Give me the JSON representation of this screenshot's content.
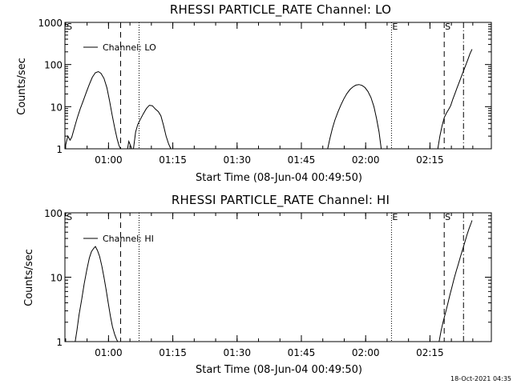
{
  "chart_data": [
    {
      "type": "line",
      "title": "RHESSI PARTICLE_RATE Channel: LO",
      "xlabel": "Start Time (08-Jun-04 00:49:50)",
      "ylabel": "Counts/sec",
      "yscale": "log",
      "ylim": [
        1,
        1000
      ],
      "yticks": [
        1,
        10,
        100,
        1000
      ],
      "ytick_labels": [
        "1",
        "10",
        "100",
        "1000"
      ],
      "xlim_min": [
        0,
        99.5
      ],
      "xticks_min": [
        10.17,
        25.17,
        40.17,
        55.17,
        70.17,
        85.17
      ],
      "xtick_labels": [
        "01:00",
        "01:15",
        "01:30",
        "01:45",
        "02:00",
        "02:15"
      ],
      "grid": false,
      "legend": {
        "label": "Channel: LO",
        "placement": "top-left"
      },
      "markers": [
        {
          "label": "S",
          "x_min": 0.2,
          "style": "none"
        },
        {
          "label": "",
          "x_min": 13.0,
          "style": "dashed"
        },
        {
          "label": "",
          "x_min": 17.3,
          "style": "dotted"
        },
        {
          "label": "E",
          "x_min": 76.2,
          "style": "dotted"
        },
        {
          "label": "S",
          "x_min": 88.5,
          "style": "dashed"
        },
        {
          "label": "",
          "x_min": 93.0,
          "style": "dashdot"
        }
      ],
      "series": [
        {
          "x": [
            0.0,
            0.3,
            0.7,
            1.2,
            1.6,
            2.3,
            2.9,
            3.6,
            4.3,
            5.0,
            5.7,
            6.4,
            7.1,
            7.8,
            8.4,
            9.1,
            9.8,
            10.4,
            11.0,
            11.6,
            12.2,
            12.6,
            13.0
          ],
          "y": [
            1.0,
            1.4,
            2.0,
            1.6,
            1.9,
            3.4,
            5.5,
            9.0,
            14,
            22,
            34,
            50,
            64,
            68,
            62,
            47,
            28,
            14,
            6.5,
            3.2,
            1.7,
            1.2,
            1.0
          ]
        },
        {
          "x": [
            14.6,
            14.9,
            15.3,
            15.6,
            16.0,
            16.5,
            17.0,
            17.6,
            18.3,
            19.0,
            19.7,
            20.4,
            21.1,
            21.8,
            22.4,
            23.0,
            23.6,
            24.2,
            24.7
          ],
          "y": [
            1.0,
            1.5,
            1.2,
            1.0,
            1.0,
            2.5,
            3.8,
            5.0,
            6.8,
            9.0,
            10.8,
            10.5,
            8.8,
            7.6,
            6.0,
            3.6,
            2.0,
            1.3,
            1.0
          ]
        },
        {
          "x": [
            61.3,
            61.8,
            62.4,
            63.0,
            63.7,
            64.4,
            65.1,
            65.8,
            66.5,
            67.2,
            67.9,
            68.6,
            69.3,
            70.0,
            70.7,
            71.4,
            72.1,
            72.7,
            73.3,
            73.8
          ],
          "y": [
            1.0,
            1.7,
            3.0,
            4.8,
            7.5,
            11.0,
            15.5,
            20.5,
            25.5,
            29.5,
            32.5,
            33.5,
            32.0,
            28.5,
            23.0,
            16.5,
            10.0,
            5.3,
            2.5,
            1.0
          ]
        },
        {
          "x": [
            87.0,
            87.5,
            88.0,
            88.5,
            89.0,
            89.5,
            90.0,
            90.5,
            91.0,
            91.5,
            92.0,
            92.5,
            93.0,
            93.5,
            94.0,
            94.5,
            95.0
          ],
          "y": [
            1.0,
            2.0,
            3.5,
            5.5,
            7.0,
            8.5,
            10.5,
            15.0,
            20.5,
            28.0,
            38.0,
            52.0,
            70.0,
            95.0,
            130.0,
            180.0,
            230.0
          ]
        }
      ]
    },
    {
      "type": "line",
      "title": "RHESSI PARTICLE_RATE Channel: HI",
      "xlabel": "Start Time (08-Jun-04 00:49:50)",
      "ylabel": "Counts/sec",
      "yscale": "log",
      "ylim": [
        1,
        100
      ],
      "yticks": [
        1,
        10,
        100
      ],
      "ytick_labels": [
        "1",
        "10",
        "100"
      ],
      "xlim_min": [
        0,
        99.5
      ],
      "xticks_min": [
        10.17,
        25.17,
        40.17,
        55.17,
        70.17,
        85.17
      ],
      "xtick_labels": [
        "01:00",
        "01:15",
        "01:30",
        "01:45",
        "02:00",
        "02:15"
      ],
      "grid": false,
      "legend": {
        "label": "Channel: HI",
        "placement": "top-left"
      },
      "markers": [
        {
          "label": "S",
          "x_min": 0.2,
          "style": "none"
        },
        {
          "label": "",
          "x_min": 13.0,
          "style": "dashed"
        },
        {
          "label": "",
          "x_min": 17.3,
          "style": "dotted"
        },
        {
          "label": "E",
          "x_min": 76.2,
          "style": "dotted"
        },
        {
          "label": "S",
          "x_min": 88.5,
          "style": "dashed"
        },
        {
          "label": "",
          "x_min": 93.0,
          "style": "dashdot"
        }
      ],
      "series": [
        {
          "x": [
            2.4,
            2.8,
            3.3,
            3.9,
            4.5,
            5.1,
            5.7,
            6.2,
            6.7,
            7.1,
            7.6,
            8.1,
            8.6,
            9.1,
            9.6,
            10.1,
            10.6,
            11.1,
            11.6,
            12.0,
            12.3
          ],
          "y": [
            1.0,
            1.5,
            2.6,
            4.5,
            8.0,
            13.0,
            20.0,
            25.0,
            28.0,
            30.0,
            26.0,
            21.0,
            15.0,
            10.0,
            6.5,
            4.0,
            2.5,
            1.7,
            1.3,
            1.1,
            1.0
          ]
        },
        {
          "x": [
            87.3,
            87.8,
            88.3,
            88.8,
            89.3,
            89.8,
            90.3,
            90.8,
            91.3,
            91.8,
            92.3,
            92.8,
            93.3,
            93.8,
            94.3,
            94.8,
            95.0
          ],
          "y": [
            1.0,
            1.5,
            2.1,
            2.8,
            3.8,
            5.2,
            7.0,
            9.5,
            12.5,
            16.0,
            21.0,
            27.0,
            35.0,
            45.0,
            57.0,
            70.0,
            76.0
          ]
        }
      ]
    }
  ],
  "timestamp": "18-Oct-2021 04:35"
}
